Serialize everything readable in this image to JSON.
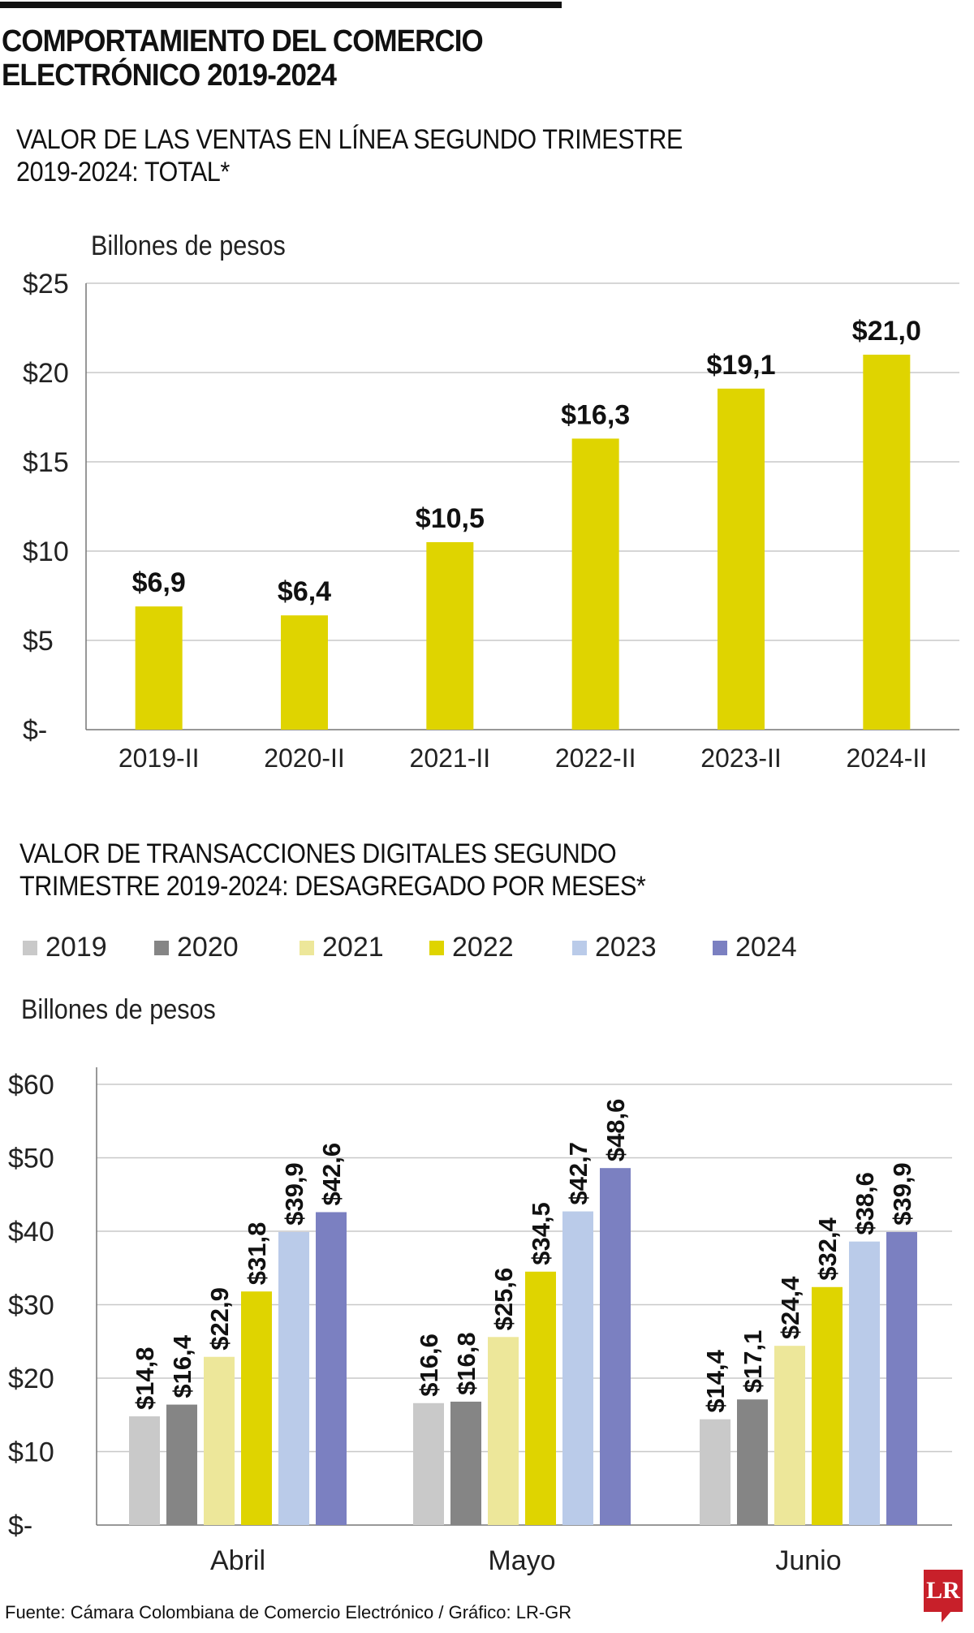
{
  "header": {
    "title_line1": "COMPORTAMIENTO DEL COMERCIO",
    "title_line2": "ELECTRÓNICO 2019-2024"
  },
  "colors": {
    "bar_yellow": "#dfd400",
    "2019": "#c9c9c9",
    "2020": "#858585",
    "2021": "#ede79a",
    "2022": "#dfd400",
    "2023": "#bacbe9",
    "2024": "#7b80c1"
  },
  "chart_data": [
    {
      "type": "bar",
      "title_line1": "VALOR DE LAS VENTAS EN LÍNEA SEGUNDO TRIMESTRE",
      "title_line2": "2019-2024: TOTAL*",
      "ylabel": "Billones de pesos",
      "categories": [
        "2019-II",
        "2020-II",
        "2021-II",
        "2022-II",
        "2023-II",
        "2024-II"
      ],
      "values": [
        6.9,
        6.4,
        10.5,
        16.3,
        19.1,
        21.0
      ],
      "data_labels": [
        "$6,9",
        "$6,4",
        "$10,5",
        "$16,3",
        "$19,1",
        "$21,0"
      ],
      "ylim": [
        0,
        25
      ],
      "yticks": [
        0,
        5,
        10,
        15,
        20,
        25
      ],
      "ytick_labels": [
        "$-",
        "$5",
        "$10",
        "$15",
        "$20",
        "$25"
      ],
      "grid": true
    },
    {
      "type": "bar",
      "title_line1": "VALOR DE TRANSACCIONES DIGITALES SEGUNDO",
      "title_line2": "TRIMESTRE 2019-2024: DESAGREGADO POR MESES*",
      "ylabel": "Billones de pesos",
      "categories": [
        "Abril",
        "Mayo",
        "Junio"
      ],
      "legend_position": "top",
      "series": [
        {
          "name": "2019",
          "values": [
            14.8,
            16.6,
            14.4
          ],
          "labels": [
            "$14,8",
            "$16,6",
            "$14,4"
          ]
        },
        {
          "name": "2020",
          "values": [
            16.4,
            16.8,
            17.1
          ],
          "labels": [
            "$16,4",
            "$16,8",
            "$17,1"
          ]
        },
        {
          "name": "2021",
          "values": [
            22.9,
            25.6,
            24.4
          ],
          "labels": [
            "$22,9",
            "$25,6",
            "$24,4"
          ]
        },
        {
          "name": "2022",
          "values": [
            31.8,
            34.5,
            32.4
          ],
          "labels": [
            "$31,8",
            "$34,5",
            "$32,4"
          ]
        },
        {
          "name": "2023",
          "values": [
            39.9,
            42.7,
            38.6
          ],
          "labels": [
            "$39,9",
            "$42,7",
            "$38,6"
          ]
        },
        {
          "name": "2024",
          "values": [
            42.6,
            48.6,
            39.9
          ],
          "labels": [
            "$42,6",
            "$48,6",
            "$39,9"
          ]
        }
      ],
      "ylim": [
        0,
        60
      ],
      "yticks": [
        0,
        10,
        20,
        30,
        40,
        50,
        60
      ],
      "ytick_labels": [
        "$-",
        "$10",
        "$20",
        "$30",
        "$40",
        "$50",
        "$60"
      ],
      "grid": true
    }
  ],
  "footer": {
    "source": "Fuente: Cámara Colombiana de Comercio Electrónico / Gráfico: LR-GR",
    "logo": "LR"
  }
}
